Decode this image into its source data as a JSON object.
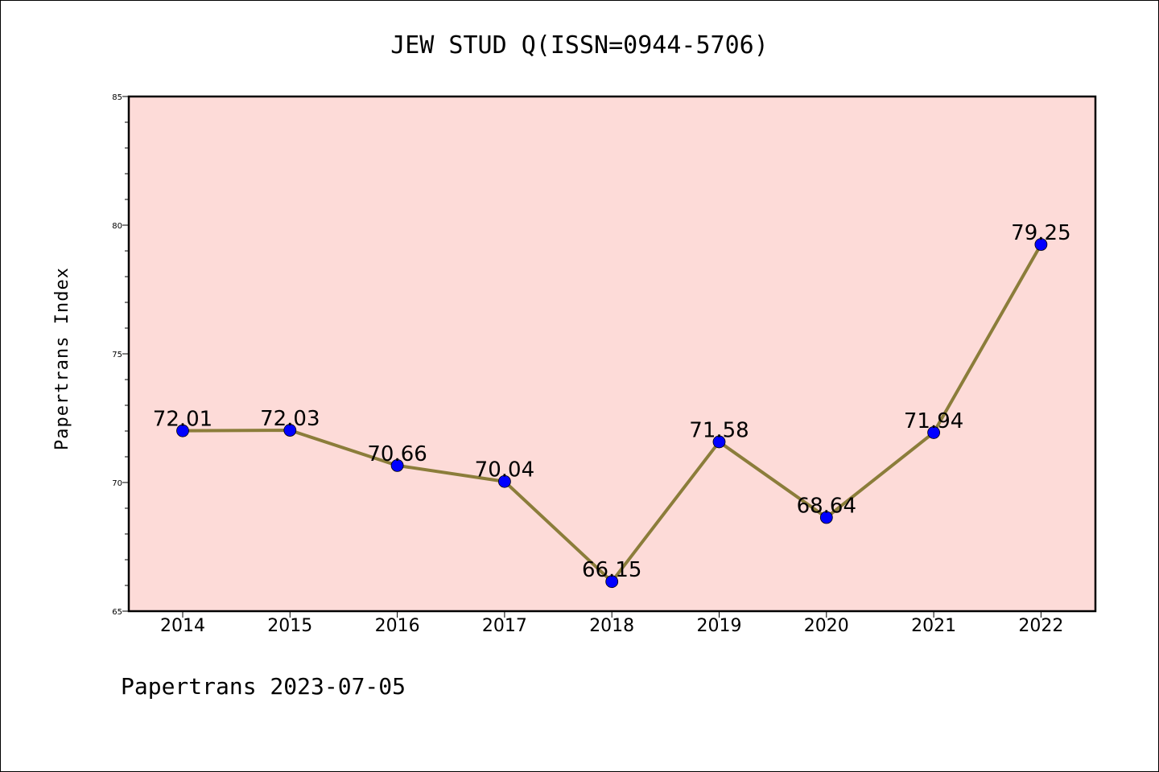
{
  "chart_data": {
    "type": "line",
    "title": "JEW STUD Q(ISSN=0944-5706)",
    "ylabel": "Papertrans Index",
    "xlabel": "",
    "footer": "Papertrans 2023-07-05",
    "categories": [
      "2014",
      "2015",
      "2016",
      "2017",
      "2018",
      "2019",
      "2020",
      "2021",
      "2022"
    ],
    "series": [
      {
        "values": [
          72.01,
          72.03,
          70.66,
          70.04,
          66.15,
          71.58,
          68.64,
          71.94,
          79.25
        ],
        "labels": [
          "72.01",
          "72.03",
          "70.66",
          "70.04",
          "66.15",
          "71.58",
          "68.64",
          "71.94",
          "79.25"
        ]
      }
    ],
    "ylim": [
      65,
      85
    ],
    "yticks": [
      65,
      70,
      75,
      80,
      85
    ],
    "ytick_labels": [
      "65",
      "70",
      "75",
      "80",
      "85"
    ],
    "grid": false,
    "colors": {
      "plot_background": "#fddbd8",
      "line": "#8b7d3a",
      "marker": "#0000ff"
    }
  }
}
